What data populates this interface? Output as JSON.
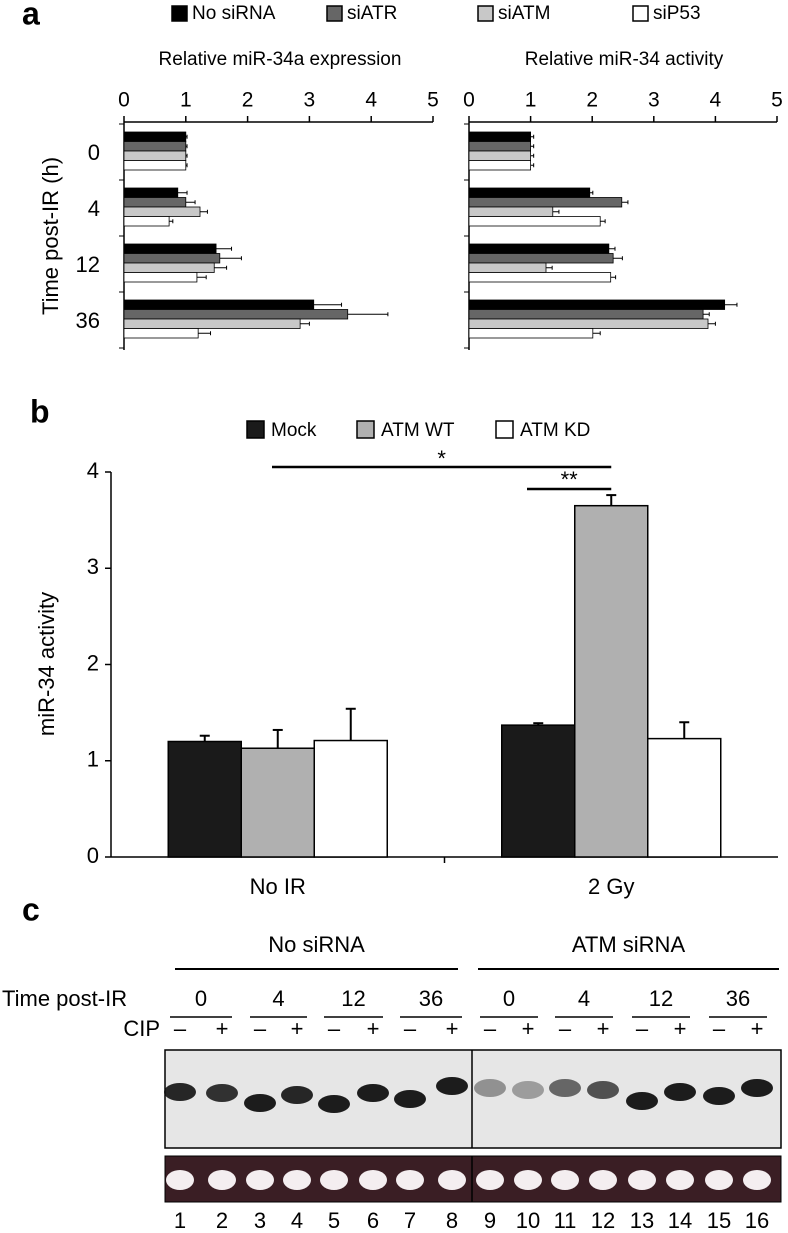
{
  "panel_labels": [
    "a",
    "b",
    "c"
  ],
  "chart_data": [
    {
      "type": "hbar",
      "title": "Relative miR-34a expression",
      "y_label": "Time post-IR (h)",
      "categories": [
        "0",
        "4",
        "12",
        "36"
      ],
      "xlim": [
        0,
        5
      ],
      "xticks": [
        0,
        1,
        2,
        3,
        4,
        5
      ],
      "series": [
        {
          "name": "No siRNA",
          "color": "#000000",
          "values": [
            1.0,
            0.87,
            1.49,
            3.07
          ],
          "errors": [
            0.02,
            0.15,
            0.25,
            0.45
          ]
        },
        {
          "name": "siATR",
          "color": "#666666",
          "values": [
            1.0,
            1.0,
            1.55,
            3.62
          ],
          "errors": [
            0.02,
            0.15,
            0.35,
            0.65
          ]
        },
        {
          "name": "siATM",
          "color": "#c8c8c8",
          "values": [
            1.0,
            1.23,
            1.46,
            2.85
          ],
          "errors": [
            0.02,
            0.12,
            0.2,
            0.15
          ]
        },
        {
          "name": "siP53",
          "color": "#ffffff",
          "values": [
            1.0,
            0.73,
            1.18,
            1.2
          ],
          "errors": [
            0.02,
            0.06,
            0.15,
            0.2
          ]
        }
      ]
    },
    {
      "type": "hbar",
      "title": "Relative miR-34 activity",
      "categories": [
        null,
        null,
        null,
        null
      ],
      "xlim": [
        0,
        5
      ],
      "xticks": [
        0,
        1,
        2,
        3,
        4,
        5
      ],
      "series": [
        {
          "color": "#000000",
          "values": [
            1.0,
            1.96,
            2.27,
            4.15
          ],
          "errors": [
            0.05,
            0.05,
            0.1,
            0.2
          ]
        },
        {
          "color": "#666666",
          "values": [
            1.0,
            2.48,
            2.34,
            3.8
          ],
          "errors": [
            0.05,
            0.1,
            0.15,
            0.1
          ]
        },
        {
          "color": "#c8c8c8",
          "values": [
            1.0,
            1.36,
            1.25,
            3.88
          ],
          "errors": [
            0.05,
            0.1,
            0.1,
            0.12
          ]
        },
        {
          "color": "#ffffff",
          "values": [
            1.0,
            2.13,
            2.3,
            2.01
          ],
          "errors": [
            0.05,
            0.08,
            0.08,
            0.12
          ]
        }
      ]
    },
    {
      "type": "bar",
      "y_label": "miR-34 activity",
      "categories": [
        "No IR",
        "2 Gy"
      ],
      "ylim": [
        0,
        4
      ],
      "yticks": [
        0,
        1,
        2,
        3,
        4
      ],
      "annotations": [
        "*",
        "**"
      ],
      "series": [
        {
          "name": "Mock",
          "color": "#1a1a1a",
          "values": [
            1.2,
            1.37
          ],
          "errors": [
            0.06,
            0.02
          ]
        },
        {
          "name": "ATM WT",
          "color": "#b0b0b0",
          "values": [
            1.13,
            3.65
          ],
          "errors": [
            0.19,
            0.11
          ]
        },
        {
          "name": "ATM KD",
          "color": "#ffffff",
          "values": [
            1.21,
            1.23
          ],
          "errors": [
            0.33,
            0.17
          ]
        }
      ]
    }
  ],
  "gel": {
    "groups": [
      "No siRNA",
      "ATM siRNA"
    ],
    "time_label": "Time post-IR",
    "times": [
      "0",
      "4",
      "12",
      "36",
      "0",
      "4",
      "12",
      "36"
    ],
    "cip_label": "CIP",
    "cip": [
      "–",
      "+",
      "–",
      "+",
      "–",
      "+",
      "–",
      "+",
      "–",
      "+",
      "–",
      "+",
      "–",
      "+",
      "–",
      "+"
    ],
    "lanes": [
      1,
      2,
      3,
      4,
      5,
      6,
      7,
      8,
      9,
      10,
      11,
      12,
      13,
      14,
      15,
      16
    ]
  }
}
